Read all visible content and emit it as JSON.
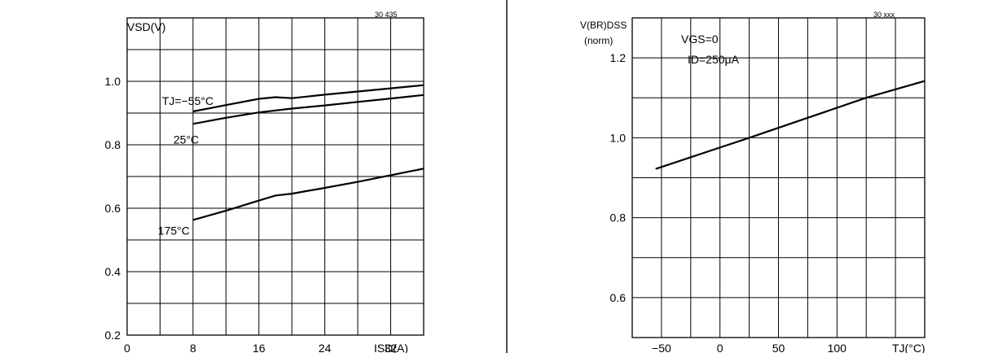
{
  "colors": {
    "ink": "#000000",
    "background": "#ffffff"
  },
  "chart_data": [
    {
      "type": "line",
      "ylabel": "VSD(V)",
      "xlabel": "ISD(A)",
      "corner_tag": "30  435",
      "xlim": [
        0,
        36
      ],
      "ylim": [
        0.2,
        1.2
      ],
      "grid": true,
      "xticks": [
        0,
        8,
        16,
        24,
        32
      ],
      "xtick_labels": [
        "0",
        "8",
        "16",
        "24",
        "32"
      ],
      "yticks": [
        0.2,
        0.4,
        0.6,
        0.8,
        1.0
      ],
      "ytick_labels": [
        "0.2",
        "0.4",
        "0.6",
        "0.8",
        "1.0"
      ],
      "series": [
        {
          "name": "TJ=−55°C",
          "x": [
            8,
            12,
            16,
            18,
            20,
            24,
            28,
            32,
            36
          ],
          "values": [
            0.905,
            0.925,
            0.945,
            0.95,
            0.947,
            0.958,
            0.968,
            0.978,
            0.988
          ]
        },
        {
          "name": "25°C",
          "x": [
            8,
            12,
            16,
            20,
            24,
            28,
            32,
            36
          ],
          "values": [
            0.866,
            0.885,
            0.902,
            0.914,
            0.924,
            0.935,
            0.946,
            0.957
          ]
        },
        {
          "name": "175°C",
          "x": [
            8,
            12,
            16,
            18,
            20,
            24,
            28,
            32,
            36
          ],
          "values": [
            0.563,
            0.592,
            0.624,
            0.64,
            0.646,
            0.664,
            0.683,
            0.704,
            0.725
          ]
        }
      ]
    },
    {
      "type": "line",
      "ylabel": "V(BR)DSS",
      "ylabel_sub": "(norm)",
      "xlabel": "TJ(°C)",
      "corner_tag": "30  xxx",
      "annotation": [
        "VGS=0",
        "ID=250μA"
      ],
      "xlim": [
        -75,
        175
      ],
      "ylim": [
        0.5,
        1.3
      ],
      "grid": true,
      "xticks": [
        -50,
        0,
        50,
        100
      ],
      "xtick_labels": [
        "−50",
        "0",
        "50",
        "100"
      ],
      "yticks": [
        0.6,
        0.8,
        1.0,
        1.2
      ],
      "ytick_labels": [
        "0.6",
        "0.8",
        "1.0",
        "1.2"
      ],
      "series": [
        {
          "name": "",
          "x": [
            -55,
            25,
            75,
            125,
            175
          ],
          "values": [
            0.922,
            1.0,
            1.05,
            1.1,
            1.142
          ]
        }
      ]
    }
  ]
}
